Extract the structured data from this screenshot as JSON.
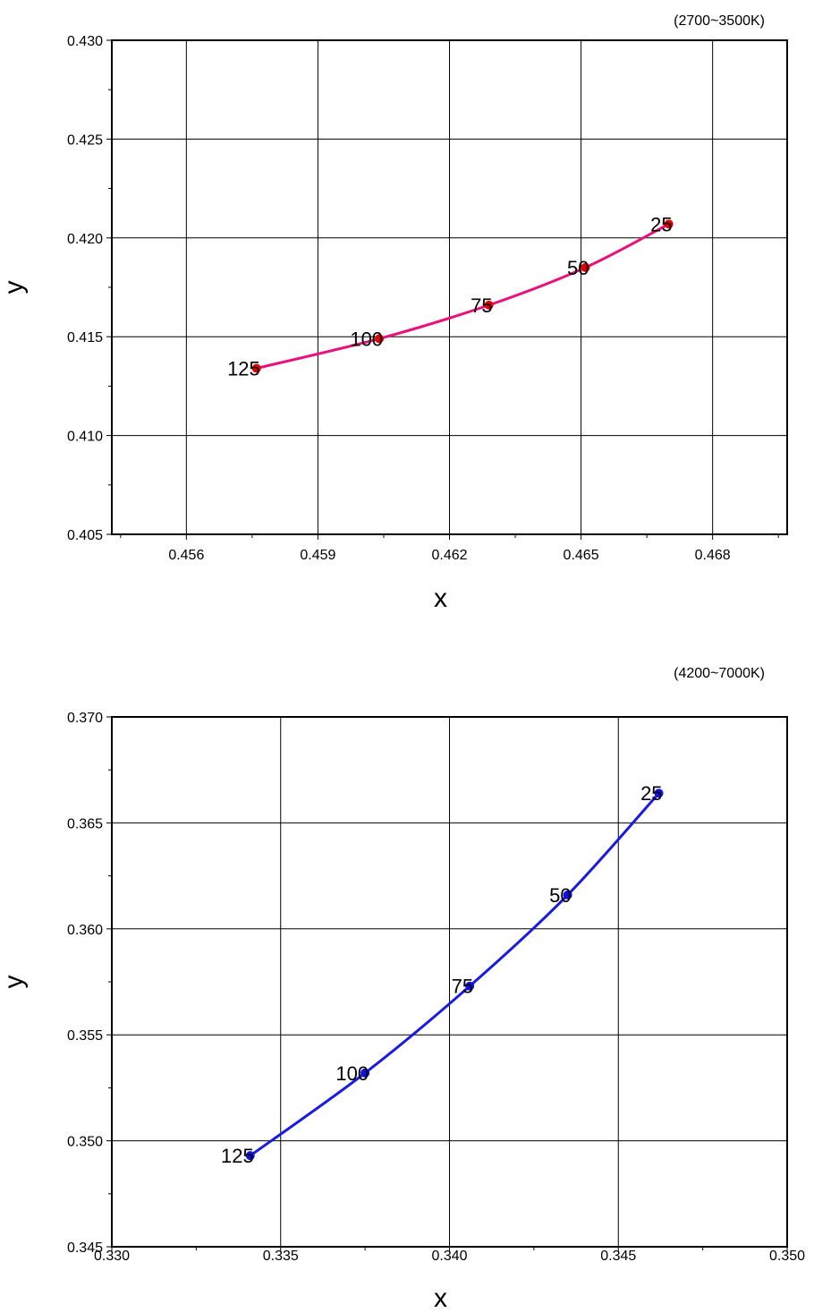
{
  "chart_data": [
    {
      "type": "line",
      "title": "(2700~3500K)",
      "xlabel": "x",
      "ylabel": "y",
      "xlim": [
        0.4543,
        0.4697
      ],
      "ylim": [
        0.405,
        0.43
      ],
      "xticks": [
        "0.456",
        "0.459",
        "0.462",
        "0.465",
        "0.468"
      ],
      "xtick_values": [
        0.456,
        0.459,
        0.462,
        0.465,
        0.468
      ],
      "yticks": [
        "0.405",
        "0.410",
        "0.415",
        "0.420",
        "0.425",
        "0.430"
      ],
      "ytick_values": [
        0.405,
        0.41,
        0.415,
        0.42,
        0.425,
        0.43
      ],
      "grid": true,
      "series": [
        {
          "color": "#e8127a",
          "marker_color": "#e00000",
          "points": [
            {
              "label": "125",
              "x": 0.4576,
              "y": 0.4134
            },
            {
              "label": "100",
              "x": 0.4604,
              "y": 0.4149
            },
            {
              "label": "75",
              "x": 0.4629,
              "y": 0.4166
            },
            {
              "label": "50",
              "x": 0.4651,
              "y": 0.4185
            },
            {
              "label": "25",
              "x": 0.467,
              "y": 0.4207
            }
          ]
        }
      ]
    },
    {
      "type": "line",
      "title": "(4200~7000K)",
      "xlabel": "x",
      "ylabel": "y",
      "xlim": [
        0.33,
        0.35
      ],
      "ylim": [
        0.345,
        0.37
      ],
      "xticks": [
        "0.330",
        "0.335",
        "0.340",
        "0.345",
        "0.350"
      ],
      "xtick_values": [
        0.33,
        0.335,
        0.34,
        0.345,
        0.35
      ],
      "yticks": [
        "0.345",
        "0.350",
        "0.355",
        "0.360",
        "0.365",
        "0.370"
      ],
      "ytick_values": [
        0.345,
        0.35,
        0.355,
        0.36,
        0.365,
        0.37
      ],
      "grid": true,
      "series": [
        {
          "color": "#1a1ae0",
          "marker_color": "#1010e0",
          "points": [
            {
              "label": "125",
              "x": 0.3341,
              "y": 0.3493
            },
            {
              "label": "100",
              "x": 0.3375,
              "y": 0.3532
            },
            {
              "label": "75",
              "x": 0.3406,
              "y": 0.3573
            },
            {
              "label": "50",
              "x": 0.3435,
              "y": 0.3616
            },
            {
              "label": "25",
              "x": 0.3462,
              "y": 0.3664
            }
          ]
        }
      ]
    }
  ]
}
